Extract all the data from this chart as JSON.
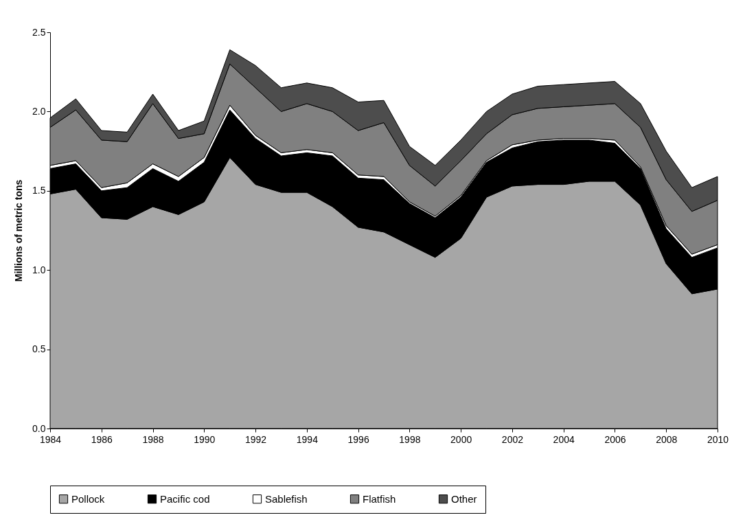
{
  "chart_data": {
    "type": "area",
    "stacked": true,
    "ylabel": "Millions of metric tons",
    "x": [
      1984,
      1985,
      1986,
      1987,
      1988,
      1989,
      1990,
      1991,
      1992,
      1993,
      1994,
      1995,
      1996,
      1997,
      1998,
      1999,
      2000,
      2001,
      2002,
      2003,
      2004,
      2005,
      2006,
      2007,
      2008,
      2009,
      2010
    ],
    "series": [
      {
        "name": "Pollock",
        "color": "#a6a6a6",
        "values": [
          1.48,
          1.51,
          1.33,
          1.32,
          1.4,
          1.35,
          1.43,
          1.71,
          1.54,
          1.49,
          1.49,
          1.4,
          1.27,
          1.24,
          1.16,
          1.08,
          1.2,
          1.46,
          1.53,
          1.54,
          1.54,
          1.56,
          1.56,
          1.41,
          1.04,
          0.85,
          0.88
        ]
      },
      {
        "name": "Pacific cod",
        "color": "#000000",
        "values": [
          0.16,
          0.16,
          0.17,
          0.2,
          0.24,
          0.21,
          0.25,
          0.3,
          0.29,
          0.23,
          0.25,
          0.32,
          0.31,
          0.33,
          0.26,
          0.25,
          0.26,
          0.22,
          0.24,
          0.27,
          0.28,
          0.26,
          0.24,
          0.23,
          0.22,
          0.23,
          0.26
        ]
      },
      {
        "name": "Sablefish",
        "color": "#ffffff",
        "values": [
          0.02,
          0.02,
          0.02,
          0.03,
          0.03,
          0.03,
          0.03,
          0.03,
          0.02,
          0.02,
          0.02,
          0.02,
          0.02,
          0.02,
          0.01,
          0.01,
          0.01,
          0.01,
          0.02,
          0.01,
          0.01,
          0.01,
          0.02,
          0.01,
          0.02,
          0.02,
          0.02
        ]
      },
      {
        "name": "Flatfish",
        "color": "#808080",
        "values": [
          0.24,
          0.32,
          0.3,
          0.26,
          0.38,
          0.24,
          0.15,
          0.26,
          0.3,
          0.26,
          0.29,
          0.26,
          0.28,
          0.34,
          0.23,
          0.19,
          0.22,
          0.17,
          0.19,
          0.2,
          0.2,
          0.21,
          0.23,
          0.25,
          0.29,
          0.27,
          0.28
        ]
      },
      {
        "name": "Other",
        "color": "#4d4d4d",
        "values": [
          0.06,
          0.07,
          0.06,
          0.06,
          0.06,
          0.05,
          0.08,
          0.09,
          0.14,
          0.15,
          0.13,
          0.15,
          0.18,
          0.14,
          0.12,
          0.13,
          0.13,
          0.14,
          0.13,
          0.14,
          0.14,
          0.14,
          0.14,
          0.15,
          0.18,
          0.15,
          0.15
        ]
      }
    ],
    "xlim": [
      1984,
      2010
    ],
    "xticks": [
      1984,
      1986,
      1988,
      1990,
      1992,
      1994,
      1996,
      1998,
      2000,
      2002,
      2004,
      2006,
      2008,
      2010
    ],
    "ylim": [
      0,
      2.5
    ],
    "yticks": [
      {
        "value": 0,
        "label": "0.0"
      },
      {
        "value": 0.5,
        "label": "0.5"
      },
      {
        "value": 1,
        "label": "1.0"
      },
      {
        "value": 1.5,
        "label": "1.5"
      },
      {
        "value": 2,
        "label": "2.0"
      },
      {
        "value": 2.5,
        "label": "2.5"
      }
    ],
    "legend": "bottom",
    "grid": false
  }
}
